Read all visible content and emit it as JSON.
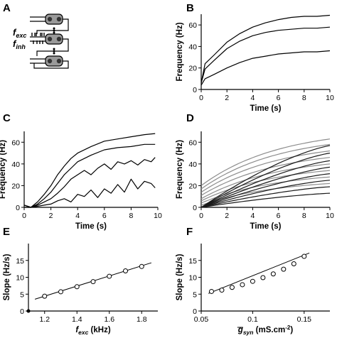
{
  "panel_labels": {
    "a": "A",
    "b": "B",
    "c": "C",
    "d": "D",
    "e": "E",
    "f": "F"
  },
  "schematic": {
    "f_exc": {
      "base": "f",
      "sub": "exc"
    },
    "f_inh": {
      "base": "f",
      "sub": "inh"
    }
  },
  "chart_data": [
    {
      "panel": "B",
      "type": "line",
      "xlabel": "Time (s)",
      "ylabel": "Frequency (Hz)",
      "xlim": [
        0,
        10
      ],
      "ylim": [
        0,
        70
      ],
      "xticks": [
        "0",
        "2",
        "4",
        "6",
        "8",
        "10"
      ],
      "yticks": [
        "0",
        "20",
        "40",
        "60"
      ],
      "series": [
        {
          "x": [
            0,
            0.3,
            1,
            2,
            3,
            4,
            5,
            6,
            7,
            8,
            9,
            10
          ],
          "values": [
            6,
            24,
            32,
            44,
            52,
            58,
            62,
            65,
            67,
            68,
            68,
            69
          ]
        },
        {
          "x": [
            0,
            0.3,
            1,
            2,
            3,
            4,
            5,
            6,
            7,
            8,
            9,
            10
          ],
          "values": [
            6,
            19,
            27,
            38,
            45,
            50,
            53,
            55,
            56,
            57,
            57,
            58
          ]
        },
        {
          "x": [
            0,
            0.3,
            1,
            2,
            3,
            4,
            5,
            6,
            7,
            8,
            9,
            10
          ],
          "values": [
            4,
            10,
            14,
            20,
            25,
            29,
            31,
            33,
            34,
            35,
            35,
            36
          ]
        }
      ]
    },
    {
      "panel": "C",
      "type": "line",
      "xlabel": "Time (s)",
      "ylabel": "Frequency (Hz)",
      "xlim": [
        0,
        10
      ],
      "ylim": [
        0,
        70
      ],
      "xticks": [
        "0",
        "2",
        "4",
        "6",
        "8",
        "10"
      ],
      "yticks": [
        "0",
        "20",
        "40",
        "60"
      ],
      "series": [
        {
          "x": [
            0,
            0.5,
            1,
            1.5,
            2,
            2.5,
            3,
            3.5,
            4,
            5,
            6,
            7,
            8,
            9,
            9.8
          ],
          "values": [
            2,
            0,
            5,
            12,
            20,
            30,
            38,
            45,
            50,
            56,
            61,
            63,
            65,
            67,
            68
          ]
        },
        {
          "x": [
            0,
            0.5,
            1,
            1.5,
            2,
            2.5,
            3,
            3.5,
            4,
            5,
            6,
            7,
            8,
            9,
            9.8
          ],
          "values": [
            2,
            0,
            3,
            8,
            14,
            22,
            30,
            36,
            42,
            48,
            53,
            55,
            56,
            58,
            58
          ]
        },
        {
          "x": [
            0,
            0.5,
            1,
            1.5,
            2,
            2.5,
            3,
            3.5,
            4,
            4.5,
            5,
            5.5,
            6,
            6.5,
            7,
            7.5,
            8,
            8.5,
            9,
            9.5,
            9.8
          ],
          "values": [
            2,
            0,
            2,
            5,
            8,
            13,
            19,
            26,
            30,
            34,
            30,
            36,
            40,
            35,
            42,
            40,
            43,
            39,
            44,
            42,
            46
          ]
        },
        {
          "x": [
            0,
            0.5,
            1,
            1.5,
            2,
            2.5,
            3,
            3.5,
            4,
            4.5,
            5,
            5.5,
            6,
            6.5,
            7,
            7.5,
            8,
            8.5,
            9,
            9.5,
            9.8
          ],
          "values": [
            0,
            0,
            1,
            2,
            3,
            6,
            8,
            5,
            12,
            10,
            16,
            9,
            17,
            13,
            21,
            14,
            26,
            17,
            24,
            22,
            18
          ]
        }
      ]
    },
    {
      "panel": "D",
      "type": "line",
      "xlabel": "Time (s)",
      "ylabel": "Frequency (Hz)",
      "xlim": [
        0,
        10
      ],
      "ylim": [
        0,
        70
      ],
      "xticks": [
        "0",
        "2",
        "4",
        "6",
        "8",
        "10"
      ],
      "yticks": [
        "0",
        "20",
        "40",
        "60"
      ],
      "series": [
        {
          "color": "#8c8c8c",
          "x": [
            0,
            10
          ],
          "values": [
            20,
            63
          ],
          "curve": "sat"
        },
        {
          "color": "#8c8c8c",
          "x": [
            0,
            10
          ],
          "values": [
            17,
            58
          ],
          "curve": "sat"
        },
        {
          "color": "#8c8c8c",
          "x": [
            0,
            10
          ],
          "values": [
            14,
            52
          ],
          "curve": "sat"
        },
        {
          "color": "#8c8c8c",
          "x": [
            0,
            10
          ],
          "values": [
            11,
            46
          ],
          "curve": "sat"
        },
        {
          "color": "#8c8c8c",
          "x": [
            0,
            10
          ],
          "values": [
            8,
            40
          ],
          "curve": "sat"
        },
        {
          "color": "#8c8c8c",
          "x": [
            0,
            10
          ],
          "values": [
            6,
            34
          ],
          "curve": "sat"
        },
        {
          "color": "#8c8c8c",
          "x": [
            0,
            10
          ],
          "values": [
            4,
            28
          ],
          "curve": "sat"
        },
        {
          "color": "#8c8c8c",
          "x": [
            0,
            10
          ],
          "values": [
            2,
            22
          ],
          "curve": "sat"
        },
        {
          "color": "#1a1a1a",
          "x": [
            0,
            10
          ],
          "values": [
            0,
            57
          ],
          "curve": "lin"
        },
        {
          "color": "#1a1a1a",
          "x": [
            0,
            10
          ],
          "values": [
            0,
            50
          ],
          "curve": "lin"
        },
        {
          "color": "#1a1a1a",
          "x": [
            0,
            10
          ],
          "values": [
            0,
            43
          ],
          "curve": "lin"
        },
        {
          "color": "#1a1a1a",
          "x": [
            0,
            10
          ],
          "values": [
            0,
            37
          ],
          "curve": "lin"
        },
        {
          "color": "#1a1a1a",
          "x": [
            0,
            10
          ],
          "values": [
            0,
            31
          ],
          "curve": "lin"
        },
        {
          "color": "#1a1a1a",
          "x": [
            0,
            10
          ],
          "values": [
            0,
            25
          ],
          "curve": "lin"
        },
        {
          "color": "#1a1a1a",
          "x": [
            0,
            10
          ],
          "values": [
            0,
            19
          ],
          "curve": "lin"
        },
        {
          "color": "#1a1a1a",
          "x": [
            0,
            10
          ],
          "values": [
            0,
            13
          ],
          "curve": "lin"
        }
      ]
    },
    {
      "panel": "E",
      "type": "scatter",
      "xlabel": {
        "base": "f",
        "sub": "exc",
        "rest": " (kHz)"
      },
      "ylabel": "Slope (Hz/s)",
      "xlim": [
        1.1,
        1.9
      ],
      "ylim": [
        0,
        20
      ],
      "xticks": [
        "1.2",
        "1.4",
        "1.6",
        "1.8"
      ],
      "yticks": [
        "0",
        "5",
        "10",
        "15"
      ],
      "x": [
        1.2,
        1.3,
        1.4,
        1.5,
        1.6,
        1.7,
        1.8
      ],
      "y": [
        4.4,
        5.7,
        7.2,
        8.7,
        10.3,
        11.9,
        13.2
      ],
      "fit": {
        "x": [
          1.14,
          1.86
        ],
        "y": [
          3.5,
          14.3
        ]
      }
    },
    {
      "panel": "F",
      "type": "scatter",
      "xlabel": {
        "base": "g",
        "sub": "syn",
        "rest": " (mS.cm",
        "sup": "-2",
        "close": ")"
      },
      "ylabel": "Slope (Hz/s)",
      "xlim": [
        0.05,
        0.175
      ],
      "ylim": [
        0,
        20
      ],
      "xticks": [
        "0.05",
        "0.1",
        "0.15"
      ],
      "yticks": [
        "0",
        "5",
        "10",
        "15"
      ],
      "x": [
        0.06,
        0.07,
        0.08,
        0.09,
        0.1,
        0.11,
        0.12,
        0.13,
        0.14,
        0.15
      ],
      "y": [
        5.8,
        6.2,
        7.0,
        7.8,
        8.8,
        9.9,
        11.0,
        12.4,
        14.0,
        16.2
      ],
      "fit": {
        "x": [
          0.057,
          0.155
        ],
        "y": [
          5.2,
          17.2
        ]
      }
    }
  ]
}
